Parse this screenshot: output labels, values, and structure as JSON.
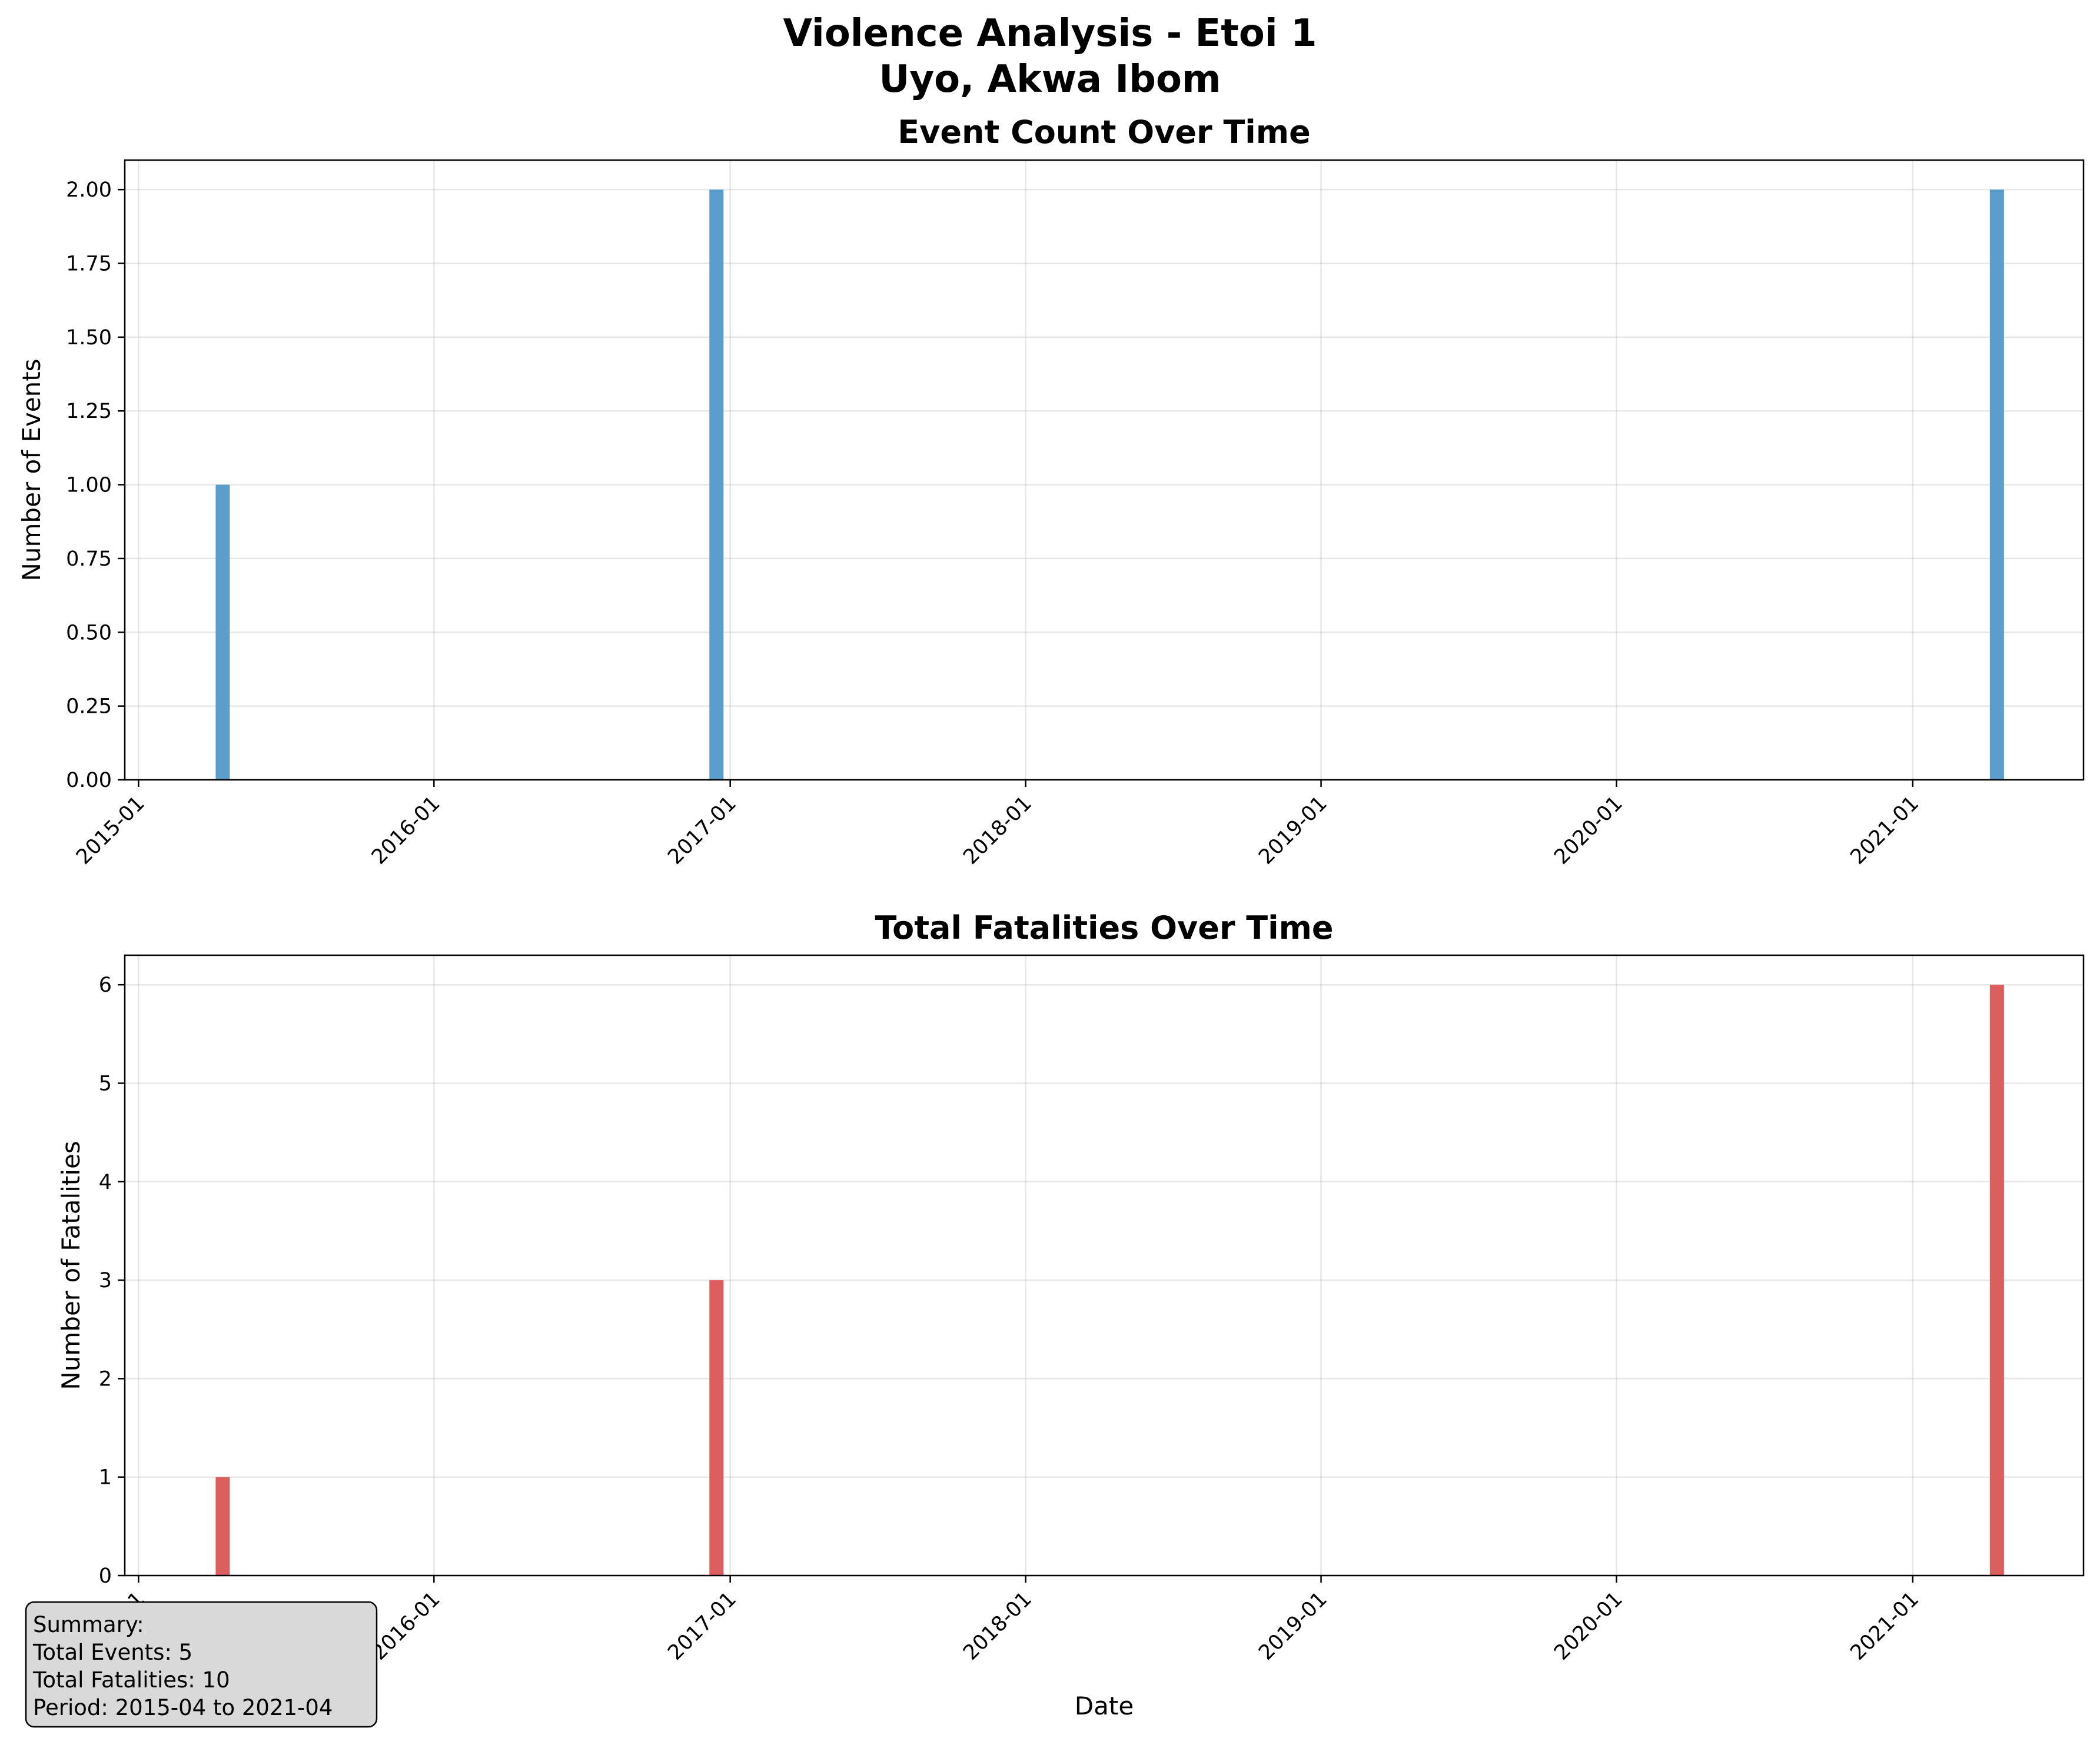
{
  "figure": {
    "title_line1": "Violence Analysis - Etoi 1",
    "title_line2": "Uyo, Akwa Ibom"
  },
  "summary": {
    "lines": [
      "Summary:",
      "Total Events: 5",
      "Total Fatalities: 10",
      "Period: 2015-04 to 2021-04"
    ]
  },
  "chart_data": [
    {
      "type": "bar",
      "title": "Event Count Over Time",
      "xlabel": "",
      "ylabel": "Number of Events",
      "x": [
        "2015-04",
        "2016-12",
        "2021-04"
      ],
      "values": [
        1,
        2,
        2
      ],
      "xlim": [
        "2014-12-15",
        "2021-07-31"
      ],
      "ylim": [
        0,
        2.1
      ],
      "yticks": [
        0,
        0.25,
        0.5,
        0.75,
        1.0,
        1.25,
        1.5,
        1.75,
        2.0
      ],
      "ytick_labels": [
        "0.00",
        "0.25",
        "0.50",
        "0.75",
        "1.00",
        "1.25",
        "1.50",
        "1.75",
        "2.00"
      ],
      "xtick_labels": [
        "2015-01",
        "2016-01",
        "2017-01",
        "2018-01",
        "2019-01",
        "2020-01",
        "2021-01"
      ],
      "color": "#5b9ecb",
      "grid": true
    },
    {
      "type": "bar",
      "title": "Total Fatalities Over Time",
      "xlabel": "Date",
      "ylabel": "Number of Fatalities",
      "x": [
        "2015-04",
        "2016-12",
        "2021-04"
      ],
      "values": [
        1,
        3,
        6
      ],
      "xlim": [
        "2014-12-15",
        "2021-07-31"
      ],
      "ylim": [
        0,
        6.3
      ],
      "yticks": [
        0,
        1,
        2,
        3,
        4,
        5,
        6
      ],
      "ytick_labels": [
        "0",
        "1",
        "2",
        "3",
        "4",
        "5",
        "6"
      ],
      "xtick_labels": [
        "2015-01",
        "2016-01",
        "2017-01",
        "2018-01",
        "2019-01",
        "2020-01",
        "2021-01"
      ],
      "color": "#dc5f5f",
      "grid": true
    }
  ]
}
